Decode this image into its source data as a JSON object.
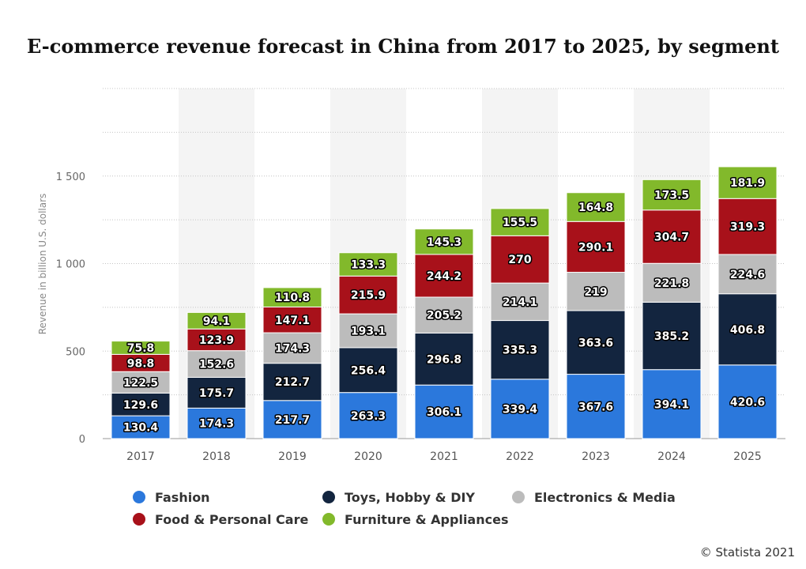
{
  "chart_data": {
    "type": "bar",
    "stacked": true,
    "title": "E-commerce revenue forecast in China from 2017 to 2025, by segment",
    "xlabel": "",
    "ylabel": "Revenue in billion U.S. dollars",
    "ylim": [
      0,
      2000
    ],
    "yticks": [
      0,
      500,
      1000,
      1500
    ],
    "ytick_labels": [
      "0",
      "500",
      "1 000",
      "1 500"
    ],
    "grid": true,
    "legend_position": "bottom",
    "categories": [
      "2017",
      "2018",
      "2019",
      "2020",
      "2021",
      "2022",
      "2023",
      "2024",
      "2025"
    ],
    "series": [
      {
        "name": "Fashion",
        "color": "#2b78dc",
        "values": [
          130.4,
          174.3,
          217.7,
          263.3,
          306.1,
          339.4,
          367.6,
          394.1,
          420.6
        ]
      },
      {
        "name": "Toys, Hobby & DIY",
        "color": "#13253f",
        "values": [
          129.6,
          175.7,
          212.7,
          256.4,
          296.8,
          335.3,
          363.6,
          385.2,
          406.8
        ]
      },
      {
        "name": "Electronics & Media",
        "color": "#bcbcbc",
        "values": [
          122.5,
          152.6,
          174.3,
          193.1,
          205.2,
          214.1,
          219,
          221.8,
          224.6
        ]
      },
      {
        "name": "Food & Personal Care",
        "color": "#a8111a",
        "values": [
          98.8,
          123.9,
          147.1,
          215.9,
          244.2,
          270,
          290.1,
          304.7,
          319.3
        ]
      },
      {
        "name": "Furniture & Appliances",
        "color": "#82b92b",
        "values": [
          75.8,
          94.1,
          110.8,
          133.3,
          145.3,
          155.5,
          164.8,
          173.5,
          181.9
        ]
      }
    ]
  },
  "credit": "© Statista 2021"
}
